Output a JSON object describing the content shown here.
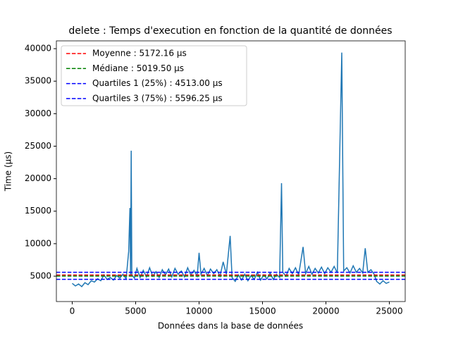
{
  "chart_data": {
    "type": "line",
    "title": "delete : Temps d'execution en fonction de la quantité de données",
    "xlabel": "Données dans la base de données",
    "ylabel": "Time (µs)",
    "x": [
      0,
      250,
      500,
      750,
      1000,
      1250,
      1500,
      1750,
      2000,
      2250,
      2500,
      2750,
      3000,
      3250,
      3500,
      3750,
      4000,
      4250,
      4450,
      4550,
      4600,
      4650,
      4700,
      4900,
      5100,
      5350,
      5600,
      5850,
      6100,
      6350,
      6600,
      6850,
      7100,
      7350,
      7600,
      7850,
      8100,
      8350,
      8600,
      8850,
      9100,
      9350,
      9600,
      9850,
      10000,
      10150,
      10400,
      10650,
      10900,
      11150,
      11400,
      11650,
      11900,
      12150,
      12450,
      12600,
      12850,
      13100,
      13350,
      13600,
      13850,
      14100,
      14350,
      14600,
      14850,
      15100,
      15350,
      15600,
      15850,
      16100,
      16350,
      16500,
      16600,
      16850,
      17100,
      17350,
      17600,
      17850,
      18200,
      18400,
      18650,
      18900,
      19150,
      19400,
      19650,
      19900,
      20150,
      20400,
      20650,
      20900,
      21250,
      21400,
      21650,
      21900,
      22150,
      22400,
      22650,
      22900,
      23100,
      23300,
      23550,
      23800,
      24000,
      24250,
      24500,
      24750,
      25000
    ],
    "series": [
      {
        "color": "#1f77b4",
        "values": [
          3900,
          3500,
          3800,
          3400,
          4000,
          3700,
          4300,
          4100,
          4600,
          4300,
          5200,
          4500,
          4800,
          4400,
          5100,
          4700,
          5300,
          4600,
          8800,
          15500,
          5000,
          24300,
          5200,
          4700,
          6200,
          4800,
          5900,
          4900,
          6300,
          5000,
          5700,
          4800,
          6000,
          5200,
          6100,
          4900,
          6200,
          5300,
          5800,
          4900,
          6300,
          5200,
          5900,
          5000,
          8600,
          5300,
          6200,
          5100,
          6100,
          5400,
          6000,
          5000,
          7200,
          5300,
          11200,
          4800,
          4200,
          5200,
          4400,
          5300,
          4300,
          5100,
          4500,
          5600,
          4400,
          5200,
          4600,
          5500,
          4500,
          5300,
          4800,
          19300,
          5600,
          5000,
          6200,
          5400,
          6300,
          5200,
          9500,
          5400,
          6500,
          5300,
          6200,
          5500,
          6400,
          5400,
          6300,
          5600,
          6500,
          5500,
          39400,
          5800,
          6300,
          5500,
          6600,
          5600,
          6200,
          5500,
          9300,
          5600,
          6000,
          5300,
          4200,
          3800,
          4300,
          3900,
          4100
        ]
      }
    ],
    "hlines": [
      {
        "name": "Moyenne : 5172.16 µs",
        "color": "#ff0000",
        "value": 5172.16
      },
      {
        "name": "Médiane : 5019.50 µs",
        "color": "#008000",
        "value": 5019.5
      },
      {
        "name": "Quartiles 1 (25%) : 4513.00 µs",
        "color": "#0000ff",
        "value": 4513.0
      },
      {
        "name": "Quartiles 3 (75%) : 5596.25 µs",
        "color": "#0000ff",
        "value": 5596.25
      }
    ],
    "xlim": [
      -1250,
      26250
    ],
    "ylim": [
      1100,
      41200
    ],
    "xticks": [
      0,
      5000,
      10000,
      15000,
      20000,
      25000
    ],
    "yticks": [
      5000,
      10000,
      15000,
      20000,
      25000,
      30000,
      35000,
      40000
    ],
    "legend": "upper left"
  }
}
